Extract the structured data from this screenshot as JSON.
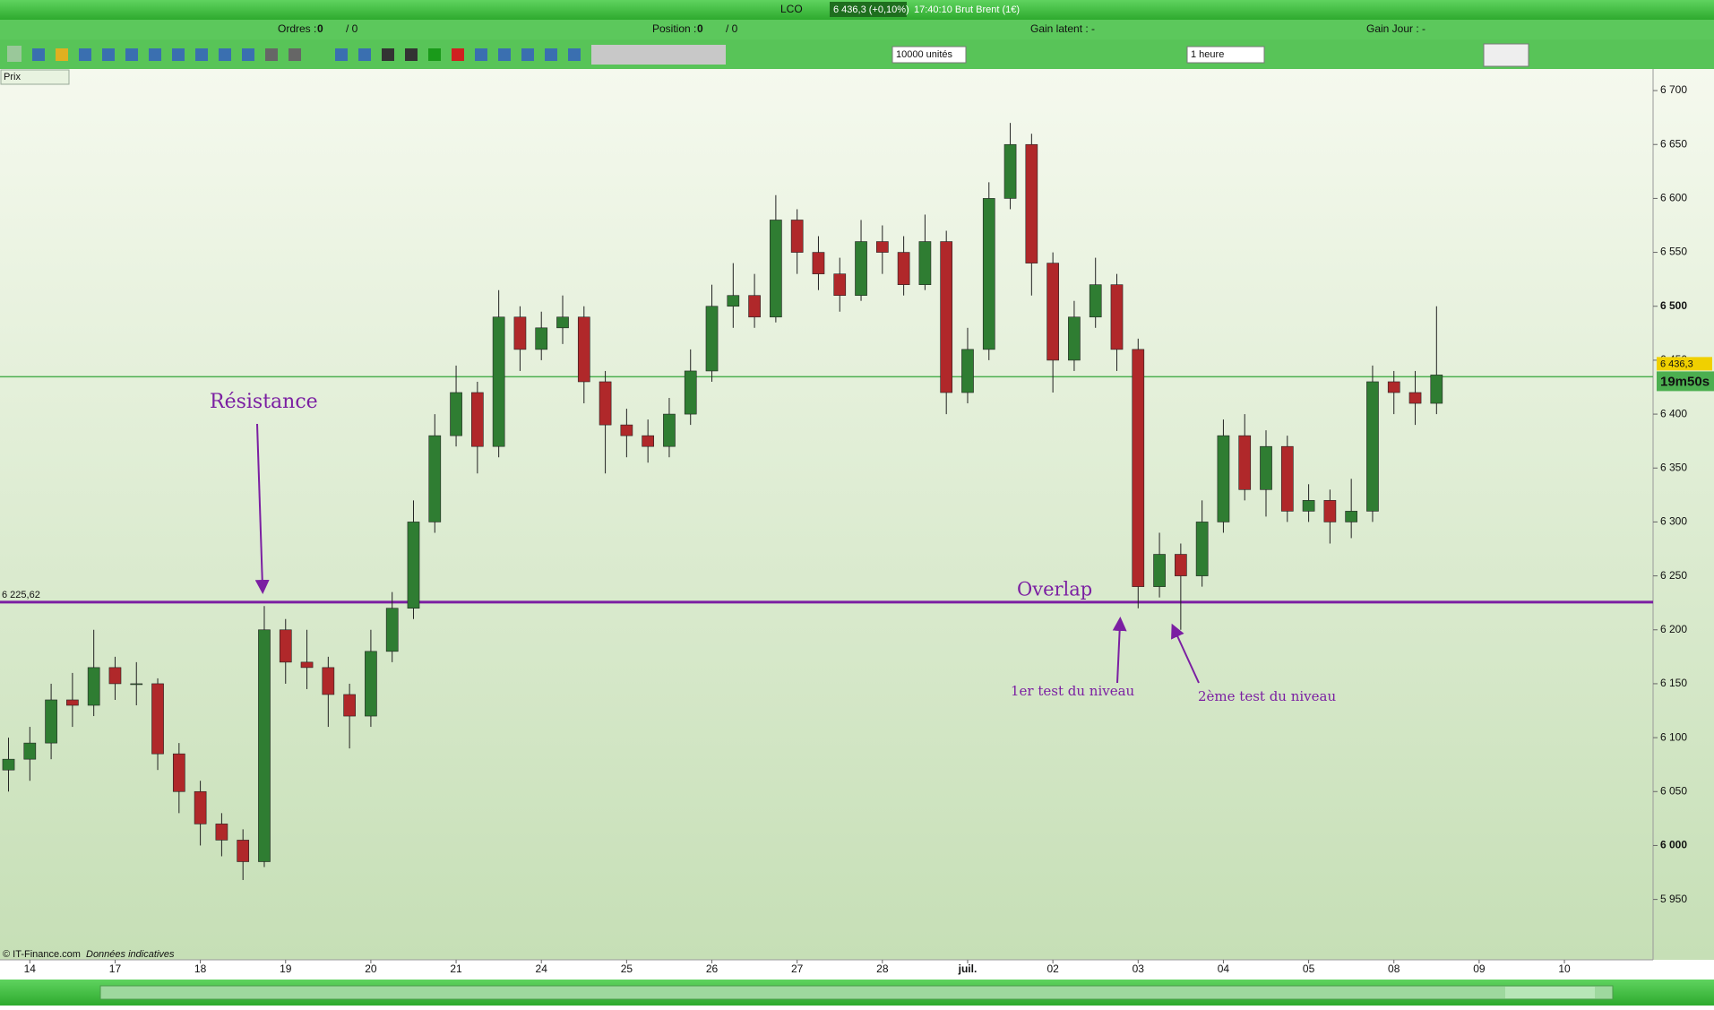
{
  "header": {
    "symbol": "LCO",
    "quote": "6 436,3 (+0,10%)",
    "time_name": "17:40:10 Brut Brent (1€)"
  },
  "status_bar": {
    "orders_label": "Ordres :",
    "orders_value": "0",
    "orders_total": "/ 0",
    "position_label": "Position :",
    "position_value": "0",
    "position_total": "/ 0",
    "gain_latent": "Gain latent : -",
    "gain_jour": "Gain Jour : -"
  },
  "toolbar": {
    "quantity": "10000 unités",
    "period": "1 heure"
  },
  "chart_panel_label": "Prix",
  "footer": {
    "copyright": "© IT-Finance.com",
    "note": "Données indicatives"
  },
  "chart_data": {
    "type": "candlestick",
    "x": [
      -0.25,
      0,
      0.25,
      0.5,
      0.75,
      1,
      1.25,
      1.5,
      1.75,
      2,
      2.25,
      2.5,
      2.75,
      3,
      3.25,
      3.5,
      3.75,
      4,
      4.25,
      4.5,
      4.75,
      5,
      5.25,
      5.5,
      5.75,
      6,
      6.25,
      6.5,
      6.75,
      7,
      7.25,
      7.5,
      7.75,
      8,
      8.25,
      8.5,
      8.75,
      9,
      9.25,
      9.5,
      9.75,
      10,
      10.25,
      10.5,
      10.75,
      11,
      11.25,
      11.5,
      11.75,
      12,
      12.25,
      12.5,
      12.75,
      13,
      13.25,
      13.5,
      13.75,
      14,
      14.25,
      14.5,
      14.75,
      15,
      15.25,
      15.5,
      15.75,
      16,
      16.25,
      16.5
    ],
    "open": [
      6070,
      6080,
      6095,
      6135,
      6130,
      6165,
      6150,
      6150,
      6085,
      6050,
      6020,
      6005,
      5985,
      6200,
      6170,
      6165,
      6140,
      6120,
      6180,
      6220,
      6300,
      6380,
      6420,
      6370,
      6490,
      6460,
      6480,
      6490,
      6430,
      6390,
      6380,
      6370,
      6400,
      6440,
      6500,
      6510,
      6490,
      6580,
      6550,
      6530,
      6510,
      6560,
      6550,
      6520,
      6560,
      6420,
      6460,
      6600,
      6650,
      6540,
      6450,
      6490,
      6520,
      6460,
      6240,
      6270,
      6250,
      6300,
      6380,
      6330,
      6370,
      6310,
      6320,
      6300,
      6310,
      6430,
      6420,
      6410
    ],
    "high": [
      6100,
      6110,
      6150,
      6160,
      6200,
      6175,
      6170,
      6155,
      6095,
      6060,
      6030,
      6015,
      6222,
      6210,
      6200,
      6175,
      6150,
      6200,
      6235,
      6320,
      6400,
      6445,
      6430,
      6515,
      6500,
      6495,
      6510,
      6500,
      6440,
      6405,
      6395,
      6415,
      6460,
      6520,
      6540,
      6530,
      6603,
      6590,
      6565,
      6545,
      6580,
      6575,
      6565,
      6585,
      6570,
      6480,
      6615,
      6670,
      6660,
      6550,
      6505,
      6545,
      6530,
      6470,
      6290,
      6280,
      6320,
      6395,
      6400,
      6385,
      6380,
      6335,
      6330,
      6340,
      6445,
      6440,
      6440,
      6500
    ],
    "low": [
      6050,
      6060,
      6080,
      6110,
      6120,
      6135,
      6130,
      6070,
      6030,
      6000,
      5990,
      5968,
      5980,
      6150,
      6145,
      6110,
      6090,
      6110,
      6170,
      6210,
      6290,
      6370,
      6345,
      6360,
      6440,
      6450,
      6465,
      6410,
      6345,
      6360,
      6355,
      6360,
      6390,
      6430,
      6480,
      6480,
      6485,
      6530,
      6515,
      6495,
      6505,
      6530,
      6510,
      6515,
      6400,
      6410,
      6450,
      6590,
      6510,
      6420,
      6440,
      6480,
      6440,
      6220,
      6230,
      6200,
      6240,
      6290,
      6320,
      6305,
      6300,
      6300,
      6280,
      6285,
      6300,
      6400,
      6390,
      6400
    ],
    "close": [
      6080,
      6095,
      6135,
      6130,
      6165,
      6150,
      6150,
      6085,
      6050,
      6020,
      6005,
      5985,
      6200,
      6170,
      6165,
      6140,
      6120,
      6180,
      6220,
      6300,
      6380,
      6420,
      6370,
      6490,
      6460,
      6480,
      6490,
      6430,
      6390,
      6380,
      6370,
      6400,
      6440,
      6500,
      6510,
      6490,
      6580,
      6550,
      6530,
      6510,
      6560,
      6550,
      6520,
      6560,
      6420,
      6460,
      6600,
      6650,
      6540,
      6450,
      6490,
      6520,
      6460,
      6240,
      6270,
      6250,
      6300,
      6380,
      6330,
      6370,
      6310,
      6320,
      6300,
      6310,
      6430,
      6420,
      6410,
      6436.3
    ],
    "up_color": "#2f7d32",
    "down_color": "#b0282a",
    "xlim": [
      -0.35,
      19.04
    ],
    "ylim": [
      5894,
      6720
    ],
    "xticks": [
      {
        "value": 0,
        "label": "14"
      },
      {
        "value": 1,
        "label": "17"
      },
      {
        "value": 2,
        "label": "18"
      },
      {
        "value": 3,
        "label": "19"
      },
      {
        "value": 4,
        "label": "20"
      },
      {
        "value": 5,
        "label": "21"
      },
      {
        "value": 6,
        "label": "24"
      },
      {
        "value": 7,
        "label": "25"
      },
      {
        "value": 8,
        "label": "26"
      },
      {
        "value": 9,
        "label": "27"
      },
      {
        "value": 10,
        "label": "28"
      },
      {
        "value": 11,
        "label": "juil."
      },
      {
        "value": 12,
        "label": "02"
      },
      {
        "value": 13,
        "label": "03"
      },
      {
        "value": 14,
        "label": "04"
      },
      {
        "value": 15,
        "label": "05"
      },
      {
        "value": 16,
        "label": "08"
      },
      {
        "value": 17,
        "label": "09"
      },
      {
        "value": 18,
        "label": "10"
      }
    ],
    "yticks": [
      {
        "value": 5950,
        "label": "5 950"
      },
      {
        "value": 6000,
        "label": "6 000"
      },
      {
        "value": 6050,
        "label": "6 050"
      },
      {
        "value": 6100,
        "label": "6 100"
      },
      {
        "value": 6150,
        "label": "6 150"
      },
      {
        "value": 6200,
        "label": "6 200"
      },
      {
        "value": 6250,
        "label": "6 250"
      },
      {
        "value": 6300,
        "label": "6 300"
      },
      {
        "value": 6350,
        "label": "6 350"
      },
      {
        "value": 6400,
        "label": "6 400"
      },
      {
        "value": 6450,
        "label": "6 450"
      },
      {
        "value": 6500,
        "label": "6 500"
      },
      {
        "value": 6550,
        "label": "6 550"
      },
      {
        "value": 6600,
        "label": "6 600"
      },
      {
        "value": 6650,
        "label": "6 650"
      },
      {
        "value": 6700,
        "label": "6 700"
      }
    ],
    "level": {
      "value": 6225.62,
      "label": "6 225,62",
      "color": "#7b1fa2"
    },
    "last_price": {
      "value": 6436.3,
      "label": "6 436,3",
      "color": "#4caf50"
    },
    "timer": "19m50s",
    "annotations": [
      "Résistance",
      "Overlap",
      "1er test du niveau",
      "2ème test du niveau"
    ]
  }
}
